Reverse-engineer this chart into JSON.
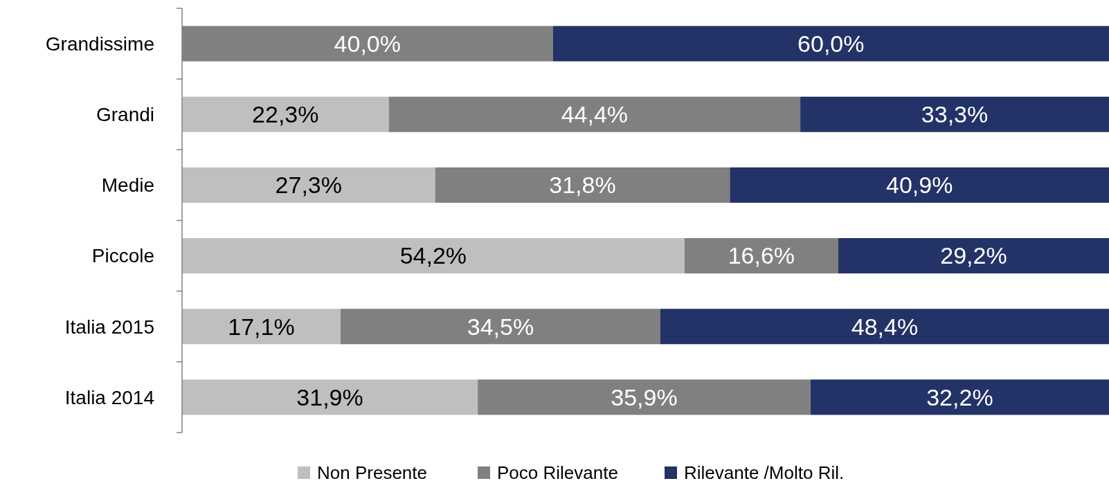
{
  "chart_data": {
    "type": "bar",
    "orientation": "horizontal",
    "stacked": true,
    "categories": [
      "Grandissime",
      "Grandi",
      "Medie",
      "Piccole",
      "Italia 2015",
      "Italia 2014"
    ],
    "series": [
      {
        "name": "Non Presente",
        "color": "#bfbfbf",
        "values": [
          0,
          22.3,
          27.3,
          54.2,
          17.1,
          31.9
        ],
        "value_labels": [
          null,
          "22,3%",
          "27,3%",
          "54,2%",
          "17,1%",
          "31,9%"
        ]
      },
      {
        "name": "Poco Rilevante",
        "color": "#808080",
        "values": [
          40.0,
          44.4,
          31.8,
          16.6,
          34.5,
          35.9
        ],
        "value_labels": [
          "40,0%",
          "44,4%",
          "31,8%",
          "16,6%",
          "34,5%",
          "35,9%"
        ]
      },
      {
        "name": "Rilevante /Molto Ril.",
        "color": "#233267",
        "values": [
          60.0,
          33.3,
          40.9,
          29.2,
          48.4,
          32.2
        ],
        "value_labels": [
          "60,0%",
          "33,3%",
          "40,9%",
          "29,2%",
          "48,4%",
          "32,2%"
        ]
      }
    ],
    "legend": "bottom"
  }
}
